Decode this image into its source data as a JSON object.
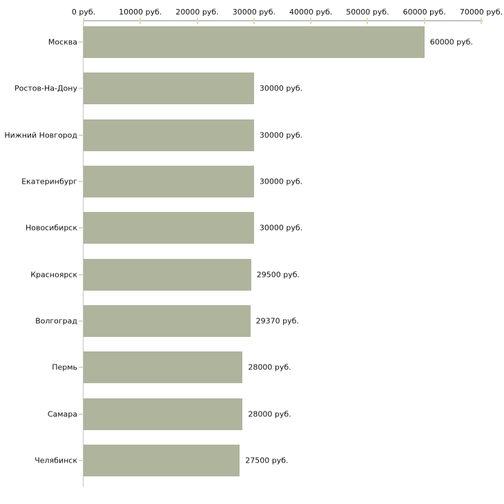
{
  "chart_data": {
    "type": "bar",
    "orientation": "horizontal",
    "categories": [
      "Москва",
      "Ростов-На-Дону",
      "Нижний Новгород",
      "Екатеринбург",
      "Новосибирск",
      "Красноярск",
      "Волгоград",
      "Пермь",
      "Самара",
      "Челябинск"
    ],
    "values": [
      60000,
      30000,
      30000,
      30000,
      30000,
      29500,
      29370,
      28000,
      28000,
      27500
    ],
    "value_labels": [
      "60000 руб.",
      "30000 руб.",
      "30000 руб.",
      "30000 руб.",
      "30000 руб.",
      "29500 руб.",
      "29370 руб.",
      "28000 руб.",
      "28000 руб.",
      "27500 руб."
    ],
    "x_ticks": [
      0,
      10000,
      20000,
      30000,
      40000,
      50000,
      60000,
      70000
    ],
    "x_tick_labels": [
      "0 руб.",
      "10000 руб.",
      "20000 руб.",
      "30000 руб.",
      "40000 руб.",
      "50000 руб.",
      "60000 руб.",
      "70000 руб."
    ],
    "xlim": [
      0,
      70000
    ],
    "axis_position": "top",
    "grid": false,
    "legend": false,
    "colors": {
      "bar": "#afb49d",
      "axis_line": "#c2c2c2",
      "tick_mark": "#d9dcbb",
      "text": "#111111",
      "background": "#ffffff"
    }
  }
}
